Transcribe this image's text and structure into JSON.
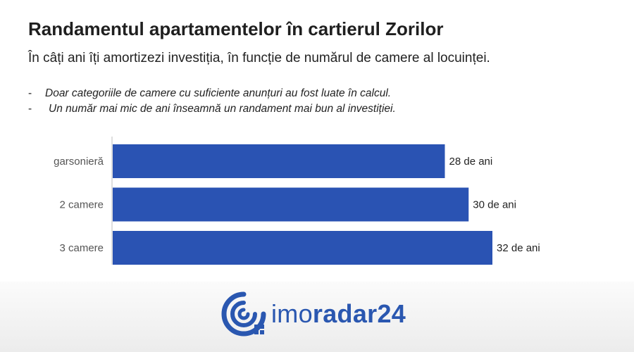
{
  "header": {
    "title": "Randamentul apartamentelor în cartierul Zorilor",
    "subtitle": "În câți ani îți amortizezi investiția, în funcție de numărul de camere al locuinței.",
    "notes": [
      {
        "bullet": "-",
        "text": "Doar categoriile de camere cu suficiente anunțuri au fost luate în calcul."
      },
      {
        "bullet": "-",
        "text": "Un număr mai mic de ani înseamnă un randament mai bun al investiției."
      }
    ]
  },
  "chart_data": {
    "type": "bar",
    "orientation": "horizontal",
    "categories": [
      "garsonieră",
      "2 camere",
      "3 camere"
    ],
    "values": [
      28,
      30,
      32
    ],
    "value_labels": [
      "28 de ani",
      "30 de ani",
      "32 de ani"
    ],
    "xlim": [
      0,
      32
    ],
    "grid": false,
    "bar_color": "#2a53b3"
  },
  "footer": {
    "logo_text_light": "imo",
    "logo_text_bold": "radar24",
    "logo_icon": "radar-icon",
    "brand_color": "#2a57b0"
  }
}
